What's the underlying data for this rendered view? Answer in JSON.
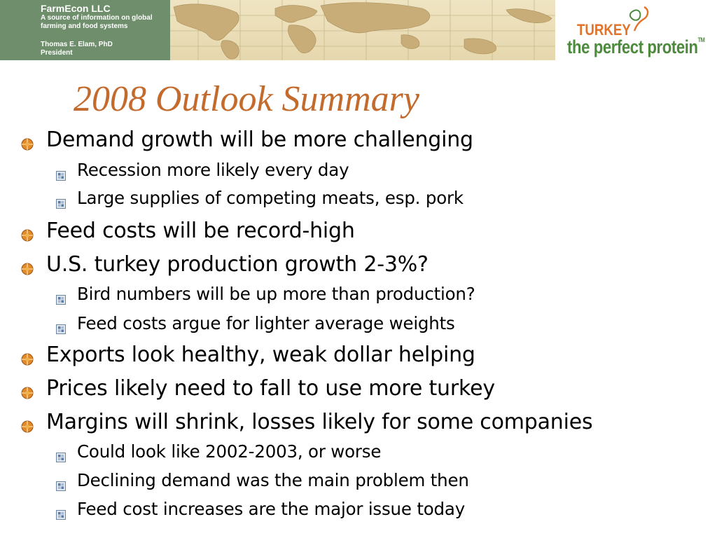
{
  "header": {
    "company": "FarmEcon LLC",
    "tagline": "A source of information on global farming and food systems",
    "presenter_name": "Thomas E. Elam, PhD",
    "presenter_role": "President",
    "box_color": "#6f8f6c"
  },
  "logo": {
    "top_word": "TURKEY",
    "bottom_words": "the perfect protein",
    "trademark": "TM",
    "top_color": "#e2732b",
    "bottom_color": "#4c8a3c"
  },
  "slide": {
    "title": "2008 Outlook Summary",
    "title_color": "#c36a2d",
    "bullets": [
      {
        "text": "Demand growth will be more challenging",
        "level": 1
      },
      {
        "text": "Recession more likely every day",
        "level": 2
      },
      {
        "text": "Large supplies of competing meats, esp. pork",
        "level": 2
      },
      {
        "text": "Feed costs will be record-high",
        "level": 1
      },
      {
        "text": "U.S. turkey production growth 2-3%?",
        "level": 1
      },
      {
        "text": "Bird numbers will be up more than production?",
        "level": 2
      },
      {
        "text": "Feed costs argue for lighter average weights",
        "level": 2
      },
      {
        "text": "Exports look healthy, weak dollar helping",
        "level": 1
      },
      {
        "text": "Prices likely need to fall to use more turkey",
        "level": 1
      },
      {
        "text": "Margins will shrink, losses likely for some companies",
        "level": 1
      },
      {
        "text": "Could look like 2002-2003, or worse",
        "level": 2
      },
      {
        "text": "Declining demand was the main problem then",
        "level": 2
      },
      {
        "text": "Feed cost increases are the major issue today",
        "level": 2
      }
    ]
  }
}
